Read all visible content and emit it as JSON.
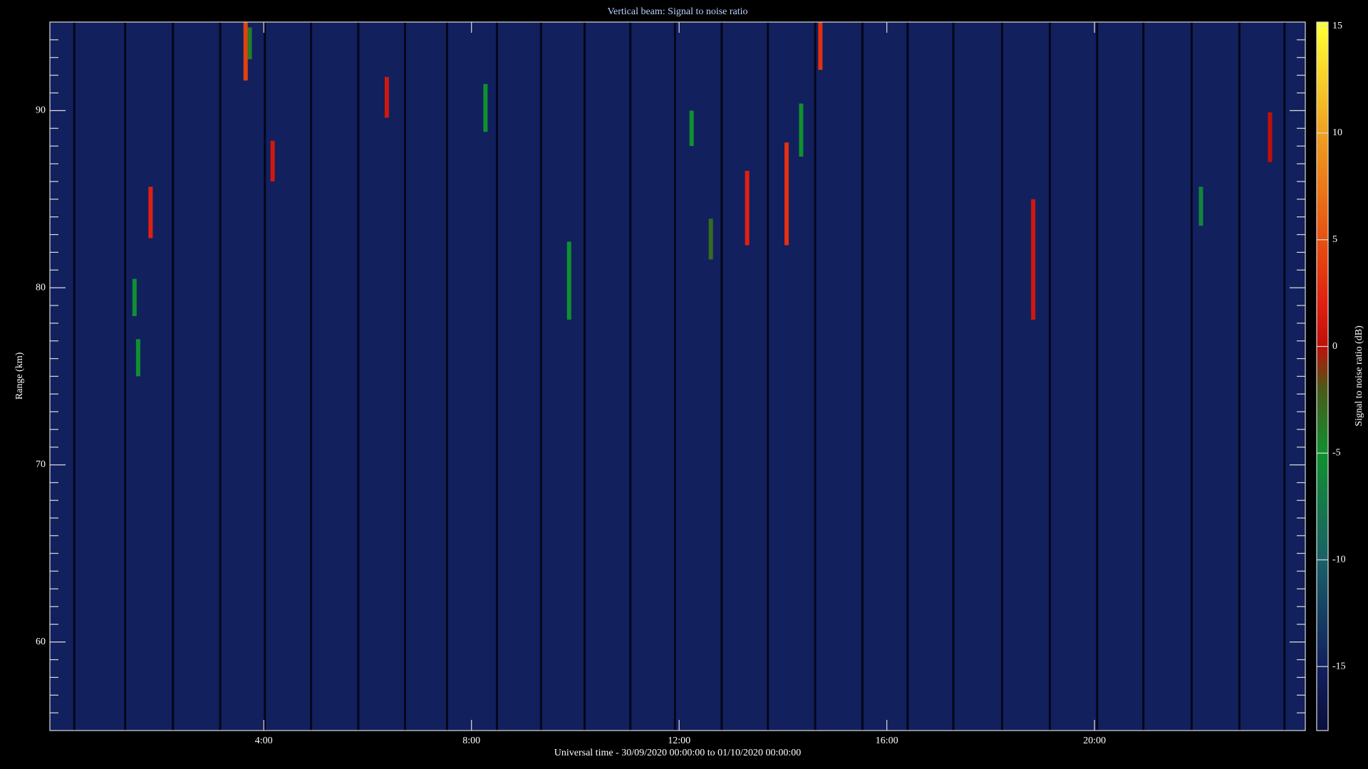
{
  "chart_data": {
    "type": "heatmap",
    "title": "Vertical beam: Signal to noise ratio",
    "xlabel": "Universal time - 30/09/2020 00:00:00 to 01/10/2020 00:00:00",
    "ylabel": "Range (km)",
    "colorbar_label": "Signal to noise ratio (dB)",
    "xlim": [
      -0.12,
      24.06
    ],
    "xticks": [
      {
        "value": 4,
        "label": "4:00"
      },
      {
        "value": 8,
        "label": "8:00"
      },
      {
        "value": 12,
        "label": "12:00"
      },
      {
        "value": 16,
        "label": "16:00"
      },
      {
        "value": 20,
        "label": "20:00"
      }
    ],
    "ylim": [
      55,
      95
    ],
    "yticks": [
      60,
      70,
      80,
      90
    ],
    "yminorticks": [
      56,
      57,
      58,
      59,
      61,
      62,
      63,
      64,
      65,
      66,
      67,
      68,
      69,
      71,
      72,
      73,
      74,
      75,
      76,
      77,
      78,
      79,
      81,
      82,
      83,
      84,
      85,
      86,
      87,
      88,
      89,
      91,
      92,
      93,
      94
    ],
    "clim": [
      -18,
      15.2
    ],
    "cticks": [
      -15,
      -10,
      -5,
      0,
      5,
      10,
      15
    ],
    "colormap": [
      {
        "value": -18,
        "color": "#0a0f3c"
      },
      {
        "value": -15,
        "color": "#12205e"
      },
      {
        "value": -10,
        "color": "#1a6068"
      },
      {
        "value": -5,
        "color": "#109030"
      },
      {
        "value": -2,
        "color": "#4a5a18"
      },
      {
        "value": 0,
        "color": "#c01008"
      },
      {
        "value": 2,
        "color": "#e02010"
      },
      {
        "value": 5,
        "color": "#e85010"
      },
      {
        "value": 10,
        "color": "#f0a020"
      },
      {
        "value": 15,
        "color": "#ffff30"
      }
    ],
    "background_snr": -15,
    "gaps": [
      0.35,
      1.33,
      2.25,
      3.16,
      4.02,
      4.91,
      5.82,
      6.72,
      7.53,
      8.49,
      9.34,
      10.18,
      11.06,
      11.92,
      12.82,
      13.71,
      14.62,
      15.53,
      16.4,
      17.28,
      18.22,
      19.14,
      20.05,
      20.94,
      21.87,
      22.79,
      23.66
    ],
    "echoes": {
      "hour": [
        1.51,
        1.58,
        1.82,
        3.65,
        3.73,
        4.17,
        6.37,
        8.27,
        9.88,
        12.24,
        12.61,
        13.31,
        14.07,
        14.35,
        14.72,
        18.82,
        22.05,
        23.38
      ],
      "range_top": [
        80.5,
        77.1,
        85.7,
        95,
        94.7,
        88.3,
        91.9,
        91.5,
        82.6,
        90,
        83.9,
        86.6,
        88.2,
        90.4,
        95,
        85,
        85.7,
        89.9
      ],
      "range_bottom": [
        78.4,
        75,
        82.8,
        91.7,
        92.9,
        86,
        89.6,
        88.8,
        78.2,
        88,
        81.6,
        82.4,
        82.4,
        87.4,
        92.3,
        78.2,
        83.5,
        87.1
      ],
      "snr": [
        -5,
        -5,
        2,
        4,
        -4,
        1,
        1,
        -5,
        -5,
        -5,
        -3,
        2,
        3,
        -5,
        3,
        1,
        -6,
        0
      ]
    }
  }
}
